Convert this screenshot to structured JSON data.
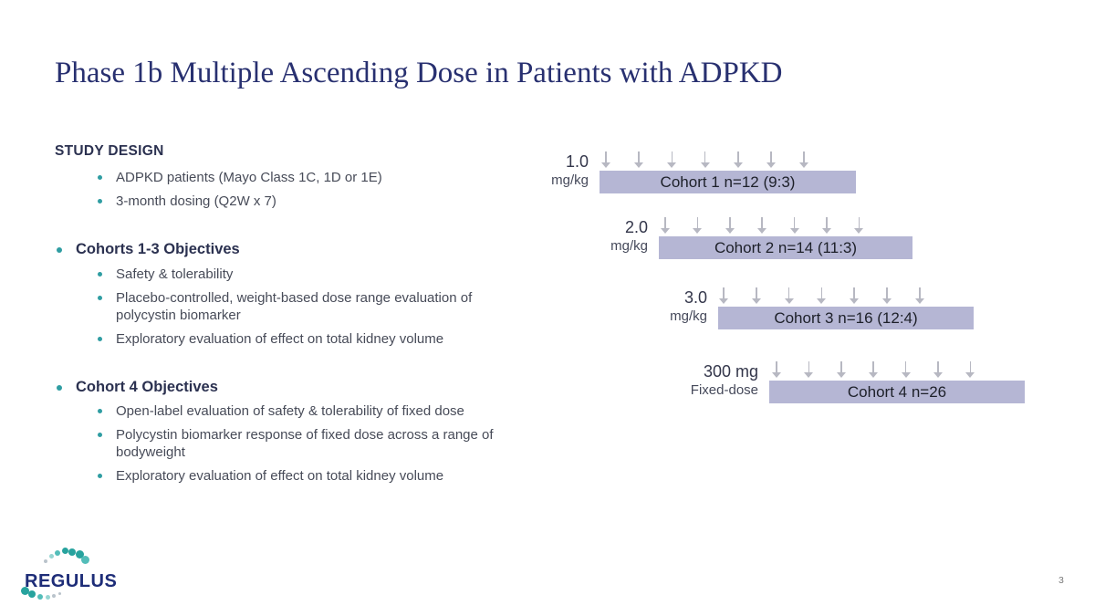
{
  "slide": {
    "title": "Phase 1b Multiple Ascending Dose in Patients with ADPKD",
    "page_number": "3"
  },
  "study_design": {
    "heading": "STUDY DESIGN",
    "bullets": [
      "ADPKD patients (Mayo Class 1C, 1D or 1E)",
      "3-month dosing (Q2W x 7)"
    ]
  },
  "cohorts13": {
    "heading": "Cohorts 1-3 Objectives",
    "bullets": [
      "Safety & tolerability",
      "Placebo-controlled, weight-based dose range evaluation of polycystin biomarker",
      "Exploratory evaluation of effect on total kidney volume"
    ]
  },
  "cohort4": {
    "heading": "Cohort 4 Objectives",
    "bullets": [
      "Open-label evaluation of safety & tolerability of fixed dose",
      "Polycystin biomarker response of fixed dose across a range of bodyweight",
      "Exploratory evaluation of effect on total kidney volume"
    ]
  },
  "diagram": {
    "rows": [
      {
        "dose": "1.0",
        "unit": "mg/kg",
        "bar_label": "Cohort 1 n=12 (9:3)",
        "arrows": 7
      },
      {
        "dose": "2.0",
        "unit": "mg/kg",
        "bar_label": "Cohort 2 n=14 (11:3)",
        "arrows": 7
      },
      {
        "dose": "3.0",
        "unit": "mg/kg",
        "bar_label": "Cohort 3 n=16 (12:4)",
        "arrows": 7
      },
      {
        "dose": "300 mg",
        "unit": "Fixed-dose",
        "bar_label": "Cohort 4 n=26",
        "arrows": 7
      }
    ]
  },
  "logo": {
    "text": "REGULUS",
    "dot_colors": {
      "t1": "#27a39e",
      "t2": "#53bdb9",
      "t3": "#97d5d2",
      "g1": "#b9c3cb"
    }
  },
  "colors": {
    "title": "#283070",
    "navy": "#2b3150",
    "body": "#474b58",
    "teal": "#2f9da2",
    "bar": "#b5b6d4",
    "bar_text": "#1d2029",
    "arrow": "#b7b8c2",
    "label_dose": "#33364a",
    "label_unit": "#45495a",
    "logo_navy": "#1e2d78",
    "page": "#7a7a7a"
  }
}
